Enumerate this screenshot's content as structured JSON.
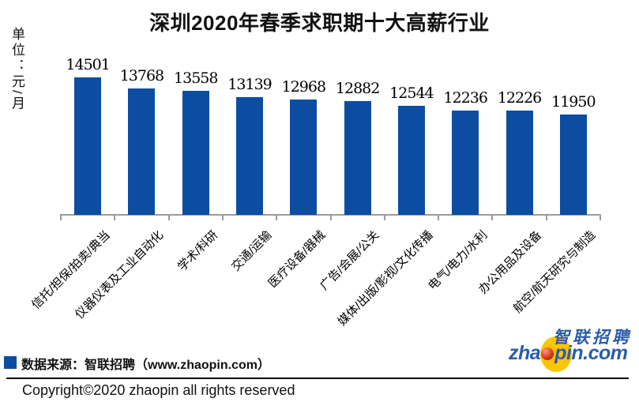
{
  "title": "深圳2020年春季求职期十大高薪行业",
  "unit_label": "单位：元/月",
  "chart_data": {
    "type": "bar",
    "title": "深圳2020年春季求职期十大高薪行业",
    "ylabel": "单位：元/月",
    "xlabel": "",
    "categories": [
      "信托/担保/拍卖/典当",
      "仪器仪表及工业自动化",
      "学术/科研",
      "交通/运输",
      "医疗设备/器械",
      "广告/会展/公关",
      "媒体/出版/影视/文化传播",
      "电气/电力/水利",
      "办公用品及设备",
      "航空/航天研究与制造"
    ],
    "values": [
      14501,
      13768,
      13558,
      13139,
      12968,
      12882,
      12544,
      12236,
      12226,
      11950
    ],
    "data_labels": true,
    "grid": false,
    "legend_position": "none",
    "ylim": [
      5000,
      15000
    ],
    "bar_color": "#0c4da1",
    "axis_color": "#9b9b9b"
  },
  "source": {
    "text": "数据来源：智联招聘（www.zhaopin.com）",
    "marker_color": "#0c4da1"
  },
  "copyright": "Copyright©2020 zhaopin all rights reserved",
  "logo": {
    "cn_text": "智联招聘",
    "wordmark_prefix": "zha",
    "wordmark_suffix": "pin.com",
    "blue": "#2b5ca9",
    "yellow": "#fdc500",
    "ball_red": "#d8391d"
  }
}
